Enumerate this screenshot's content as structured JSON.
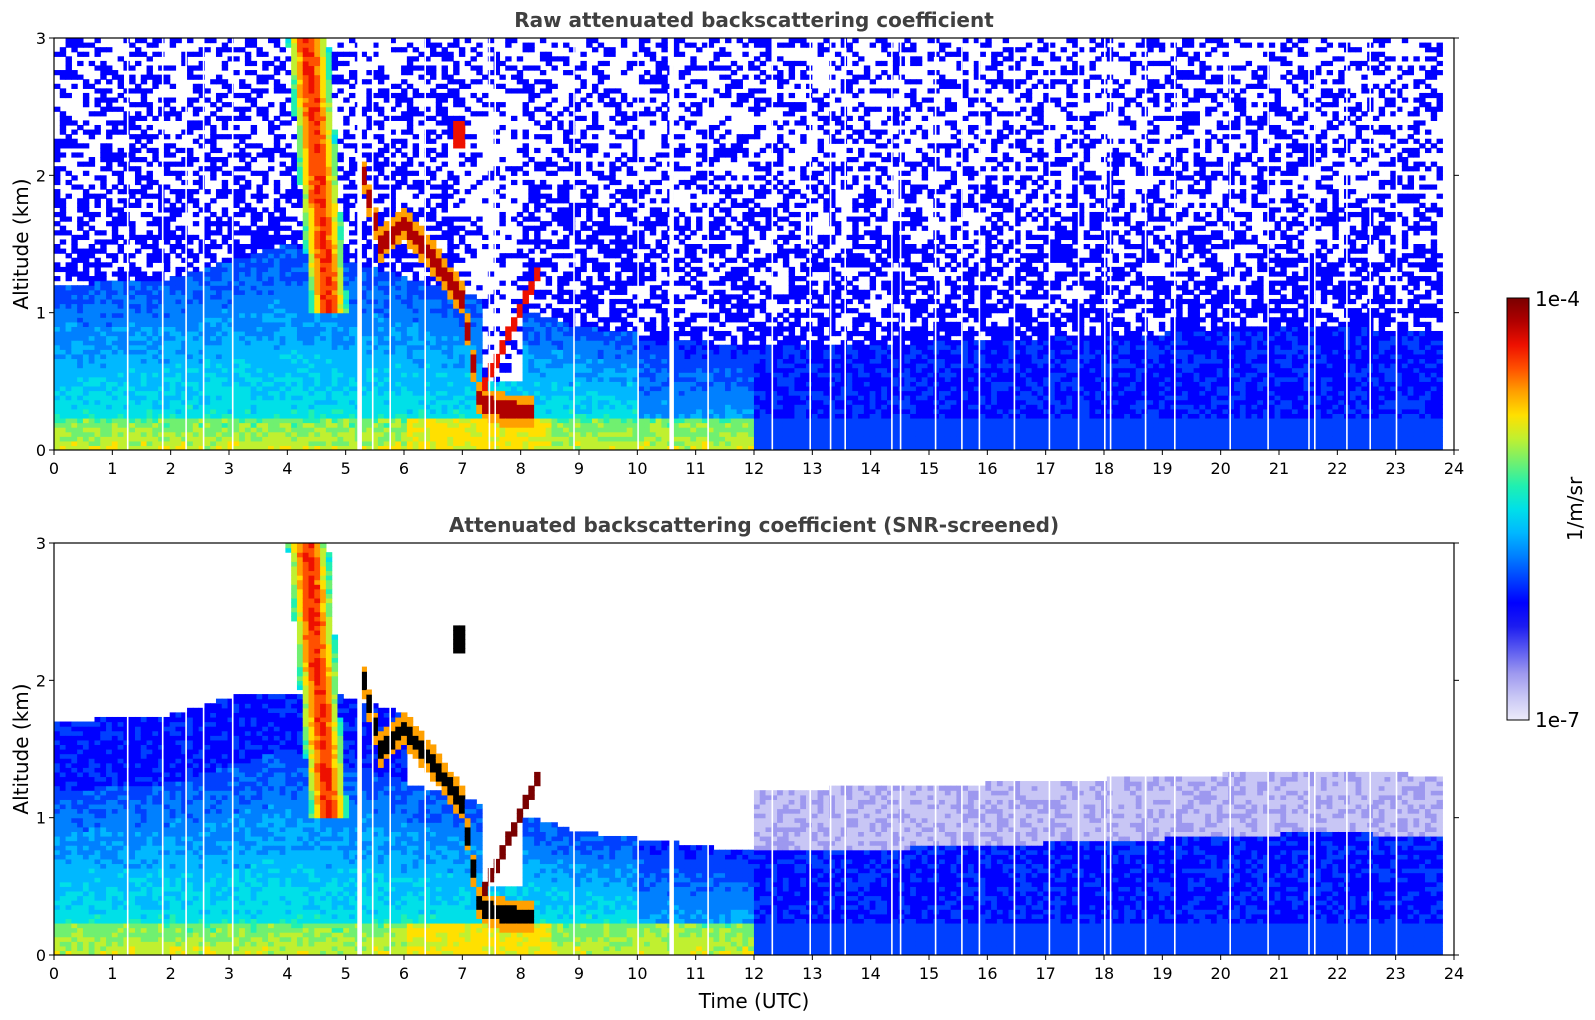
{
  "chart_data": [
    {
      "type": "heatmap",
      "title": "Raw attenuated backscattering coefficient",
      "xlabel": "",
      "ylabel": "Altitude (km)",
      "xlim": [
        0,
        24
      ],
      "ylim": [
        0,
        3
      ],
      "xticks": [
        "0",
        "1",
        "2",
        "3",
        "4",
        "5",
        "6",
        "7",
        "8",
        "9",
        "10",
        "11",
        "12",
        "13",
        "14",
        "15",
        "16",
        "17",
        "18",
        "19",
        "20",
        "21",
        "22",
        "23",
        "24"
      ],
      "yticks": [
        "0",
        "1",
        "2",
        "3"
      ],
      "data_extent_x": [
        0,
        23.8
      ],
      "screened": false,
      "features": {
        "aerosol_layer_top_km": [
          [
            0,
            1.2
          ],
          [
            2,
            1.25
          ],
          [
            4,
            1.5
          ],
          [
            9,
            0.9
          ],
          [
            12,
            0.75
          ],
          [
            16,
            0.8
          ],
          [
            22,
            0.9
          ],
          [
            23.8,
            0.85
          ]
        ],
        "surface_layer_top_km": 0.25,
        "cloud_band_km": [
          [
            5.3,
            2.0
          ],
          [
            5.6,
            1.5
          ],
          [
            6.0,
            1.65
          ],
          [
            6.5,
            1.4
          ],
          [
            7.0,
            1.1
          ],
          [
            7.3,
            0.35
          ],
          [
            7.7,
            0.3
          ],
          [
            8.2,
            0.28
          ]
        ],
        "high_cloud_patch": {
          "x": [
            6.8,
            7.0
          ],
          "y_km": [
            2.2,
            2.4
          ]
        },
        "precip_streak": {
          "x_top": [
            4.0,
            4.7
          ],
          "x_bottom": [
            4.6,
            5.2
          ]
        }
      }
    },
    {
      "type": "heatmap",
      "title": "Attenuated backscattering coefficient (SNR-screened)",
      "xlabel": "Time (UTC)",
      "ylabel": "Altitude (km)",
      "xlim": [
        0,
        24
      ],
      "ylim": [
        0,
        3
      ],
      "xticks": [
        "0",
        "1",
        "2",
        "3",
        "4",
        "5",
        "6",
        "7",
        "8",
        "9",
        "10",
        "11",
        "12",
        "13",
        "14",
        "15",
        "16",
        "17",
        "18",
        "19",
        "20",
        "21",
        "22",
        "23",
        "24"
      ],
      "yticks": [
        "0",
        "1",
        "2",
        "3"
      ],
      "data_extent_x": [
        0,
        23.8
      ],
      "screened": true
    }
  ],
  "colorbar": {
    "label": "1/m/sr",
    "max_label": "1e-4",
    "min_label": "1e-7",
    "scale": "log",
    "range": [
      1e-07,
      0.0001
    ],
    "colors": [
      "#ecebfa",
      "#c8c6f5",
      "#9d98ef",
      "#5a5af0",
      "#1c1cf0",
      "#0000ff",
      "#0040ff",
      "#0080ff",
      "#00b8ff",
      "#00e0e8",
      "#20f0b0",
      "#70f070",
      "#c0f030",
      "#ffe000",
      "#ffa000",
      "#ff5000",
      "#ee1000",
      "#b00000",
      "#7a0000"
    ]
  }
}
